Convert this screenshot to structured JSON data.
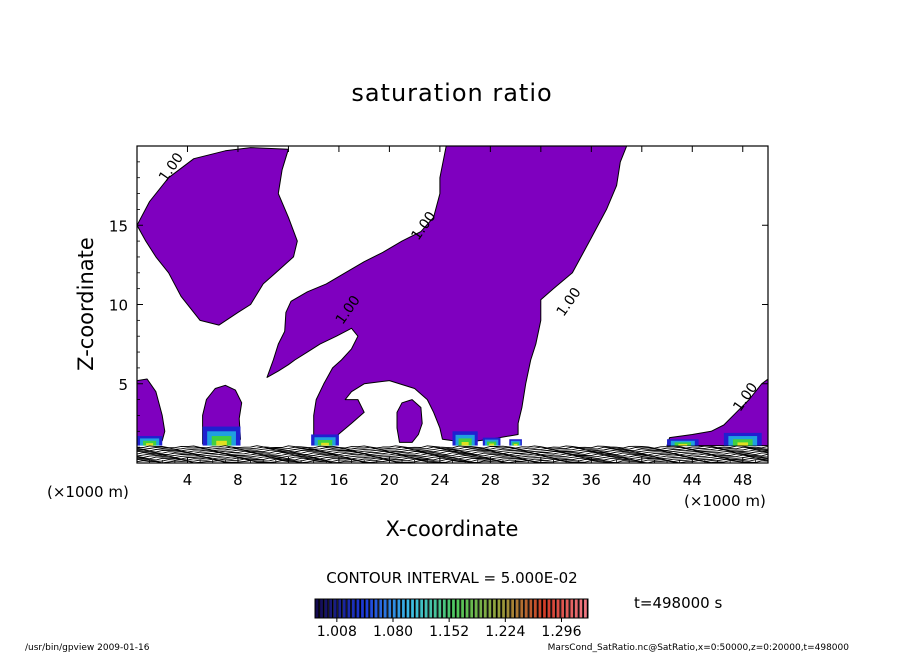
{
  "chart_data": {
    "type": "contour",
    "title": "saturation ratio",
    "xlabel": "X-coordinate",
    "ylabel": "Z-coordinate",
    "x_unit": "(×1000 m)",
    "y_unit": "(×1000 m)",
    "xlim": [
      0,
      50
    ],
    "ylim": [
      0,
      20
    ],
    "x_ticks": [
      4,
      8,
      12,
      16,
      20,
      24,
      28,
      32,
      36,
      40,
      44,
      48
    ],
    "y_ticks": [
      5,
      10,
      15
    ],
    "contour_label": "1.00",
    "contour_interval": "CONTOUR INTERVAL = 5.000E-02",
    "colorbar_ticks": [
      "1.008",
      "1.080",
      "1.152",
      "1.224",
      "1.296"
    ],
    "colorbar_range": [
      0.98,
      1.33
    ],
    "time_label": "t=498000 s",
    "fill_color": "#7f00bf",
    "footer_left": "/usr/bin/gpview  2009-01-16",
    "footer_right": "MarsCond_SatRatio.nc@SatRatio,x=0:50000,z=0:20000,t=498000",
    "contour_labels": [
      {
        "x": 3.0,
        "y": 18.5
      },
      {
        "x": 23.0,
        "y": 14.8
      },
      {
        "x": 17.0,
        "y": 9.5
      },
      {
        "x": 34.5,
        "y": 10.0
      },
      {
        "x": 48.5,
        "y": 4.0
      }
    ],
    "supersaturated_regions": [
      [
        [
          0,
          15
        ],
        [
          1,
          16.5
        ],
        [
          2.5,
          18
        ],
        [
          4.5,
          19.2
        ],
        [
          7,
          19.7
        ],
        [
          9,
          19.9
        ],
        [
          12,
          19.8
        ],
        [
          11.5,
          18.5
        ],
        [
          11.2,
          17
        ],
        [
          12,
          15.5
        ],
        [
          12.7,
          14
        ],
        [
          12.4,
          13
        ],
        [
          11,
          12
        ],
        [
          10,
          11.3
        ],
        [
          9,
          10
        ],
        [
          8,
          9.5
        ],
        [
          6.5,
          8.7
        ],
        [
          5,
          9
        ],
        [
          3.5,
          10.5
        ],
        [
          2.5,
          12
        ],
        [
          1.5,
          13
        ],
        [
          0.7,
          14
        ]
      ],
      [
        [
          10.3,
          5.4
        ],
        [
          10.8,
          6.5
        ],
        [
          11.2,
          7.5
        ],
        [
          11.7,
          8.3
        ],
        [
          11.8,
          9.5
        ],
        [
          12.2,
          10.2
        ],
        [
          13.5,
          10.8
        ],
        [
          15,
          11.3
        ],
        [
          16.5,
          12
        ],
        [
          18,
          12.7
        ],
        [
          19.5,
          13.3
        ],
        [
          21,
          14
        ],
        [
          22.5,
          14.6
        ],
        [
          23.5,
          15.5
        ],
        [
          24,
          17
        ],
        [
          24,
          18
        ],
        [
          24.5,
          20
        ],
        [
          38.8,
          20
        ],
        [
          38.3,
          19
        ],
        [
          38,
          17.5
        ],
        [
          37.2,
          16
        ],
        [
          36,
          14.2
        ],
        [
          34.5,
          12
        ],
        [
          33,
          11
        ],
        [
          32,
          10.3
        ],
        [
          32,
          9
        ],
        [
          31.6,
          7.5
        ],
        [
          31.2,
          6.5
        ],
        [
          30.8,
          5
        ],
        [
          30.5,
          3.5
        ],
        [
          30.2,
          2.5
        ],
        [
          30.2,
          1.8
        ],
        [
          28,
          1.5
        ],
        [
          26,
          1.3
        ],
        [
          24.2,
          1.5
        ],
        [
          24,
          2.2
        ],
        [
          23.5,
          3.2
        ],
        [
          23,
          4
        ],
        [
          22,
          4.7
        ],
        [
          20,
          5.2
        ],
        [
          18,
          5
        ],
        [
          17,
          4.5
        ],
        [
          16.5,
          4
        ],
        [
          17.5,
          4
        ],
        [
          18,
          3.2
        ],
        [
          17,
          2.5
        ],
        [
          15.5,
          1.5
        ],
        [
          14,
          1.4
        ],
        [
          14,
          2
        ],
        [
          14,
          3
        ],
        [
          14.2,
          4
        ],
        [
          14.8,
          5
        ],
        [
          15.5,
          6
        ],
        [
          16.2,
          6.5
        ],
        [
          17,
          7.2
        ],
        [
          17.5,
          8
        ],
        [
          17,
          8.5
        ],
        [
          15.8,
          8
        ],
        [
          14.5,
          7.5
        ],
        [
          13.5,
          7
        ],
        [
          12.5,
          6.5
        ],
        [
          12,
          6.2
        ],
        [
          11.2,
          5.8
        ]
      ],
      [
        [
          0,
          1.3
        ],
        [
          0,
          5.2
        ],
        [
          0.8,
          5.3
        ],
        [
          1.5,
          4.5
        ],
        [
          2,
          3
        ],
        [
          2.2,
          2
        ],
        [
          2,
          1.4
        ],
        [
          1.2,
          1.2
        ]
      ],
      [
        [
          5.2,
          1.2
        ],
        [
          5.2,
          3
        ],
        [
          5.5,
          4
        ],
        [
          6.2,
          4.7
        ],
        [
          7,
          4.9
        ],
        [
          7.8,
          4.6
        ],
        [
          8.3,
          3.8
        ],
        [
          8.1,
          2.8
        ],
        [
          8.2,
          1.5
        ],
        [
          8,
          1.2
        ]
      ],
      [
        [
          20.8,
          1.3
        ],
        [
          20.6,
          2.2
        ],
        [
          20.6,
          3.2
        ],
        [
          21,
          3.8
        ],
        [
          21.8,
          4
        ],
        [
          22.5,
          3.5
        ],
        [
          22.6,
          2.5
        ],
        [
          22.3,
          1.8
        ],
        [
          21.8,
          1.3
        ]
      ],
      [
        [
          42,
          1.1
        ],
        [
          42.2,
          1.6
        ],
        [
          44,
          1.8
        ],
        [
          45.5,
          2
        ],
        [
          46.5,
          2.4
        ],
        [
          47.5,
          3.2
        ],
        [
          48.5,
          4
        ],
        [
          49.5,
          5
        ],
        [
          50,
          5.3
        ],
        [
          50,
          1.1
        ]
      ]
    ],
    "colored_patches": [
      [
        [
          0,
          1.1
        ],
        [
          2.0,
          1.1
        ],
        [
          2.0,
          1.7
        ],
        [
          0,
          1.7
        ]
      ],
      [
        [
          5.2,
          1.1
        ],
        [
          8.2,
          1.1
        ],
        [
          8.2,
          2.3
        ],
        [
          5.2,
          2.3
        ]
      ],
      [
        [
          13.8,
          1.1
        ],
        [
          16.0,
          1.1
        ],
        [
          16.0,
          1.8
        ],
        [
          13.8,
          1.8
        ]
      ],
      [
        [
          25.0,
          1.1
        ],
        [
          27.0,
          1.1
        ],
        [
          27.0,
          2.0
        ],
        [
          25.0,
          2.0
        ]
      ],
      [
        [
          27.4,
          1.1
        ],
        [
          28.8,
          1.1
        ],
        [
          28.8,
          1.6
        ],
        [
          27.4,
          1.6
        ]
      ],
      [
        [
          29.5,
          1.1
        ],
        [
          30.5,
          1.1
        ],
        [
          30.5,
          1.5
        ],
        [
          29.5,
          1.5
        ]
      ],
      [
        [
          42.0,
          1.1
        ],
        [
          44.5,
          1.1
        ],
        [
          44.5,
          1.5
        ],
        [
          42.0,
          1.5
        ]
      ],
      [
        [
          46.5,
          1.1
        ],
        [
          49.5,
          1.1
        ],
        [
          49.5,
          1.9
        ],
        [
          46.5,
          1.9
        ]
      ]
    ]
  }
}
